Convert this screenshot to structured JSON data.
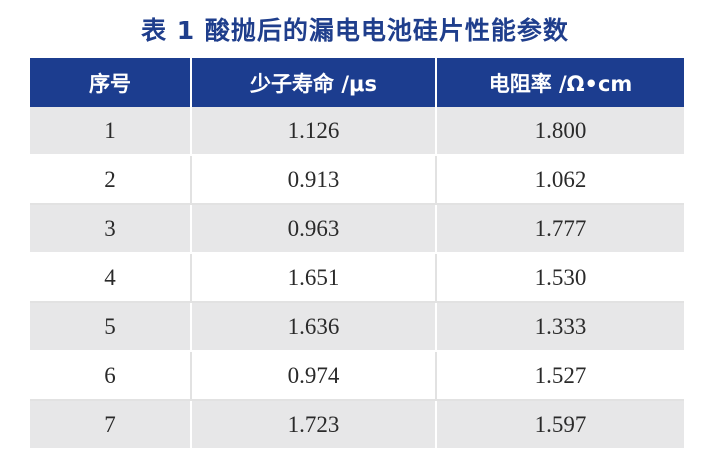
{
  "caption": "表 1  酸抛后的漏电电池硅片性能参数",
  "headers": [
    "序号",
    "少子寿命 /μs",
    "电阻率 /Ω•cm"
  ],
  "rows": [
    [
      "1",
      "1.126",
      "1.800"
    ],
    [
      "2",
      "0.913",
      "1.062"
    ],
    [
      "3",
      "0.963",
      "1.777"
    ],
    [
      "4",
      "1.651",
      "1.530"
    ],
    [
      "5",
      "1.636",
      "1.333"
    ],
    [
      "6",
      "0.974",
      "1.527"
    ],
    [
      "7",
      "1.723",
      "1.597"
    ]
  ],
  "colors": {
    "header_bg": "#1c3d8f",
    "caption_text": "#1f3e8c",
    "stripe_row": "#e7e7e8"
  }
}
